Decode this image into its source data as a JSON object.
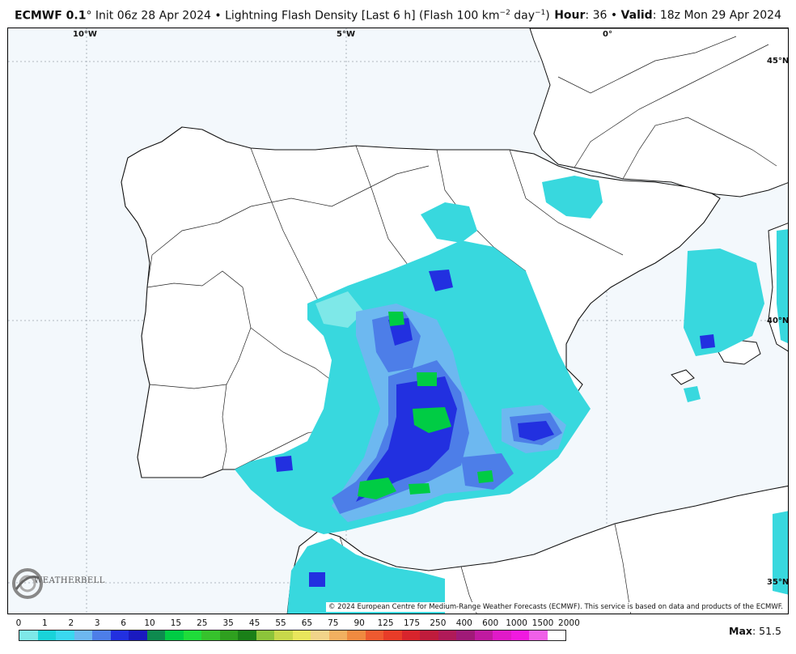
{
  "header": {
    "model": "ECMWF 0.1",
    "init_text": "° Init 06z 28 Apr 2024 • Lightning Flash Density [Last 6 h] (Flash 100 km",
    "unit_exp1": "−2",
    "unit_mid": " day",
    "unit_exp2": "−1",
    "unit_end": ")",
    "hour_label": "Hour",
    "hour_value": ": 36 • ",
    "valid_label": "Valid",
    "valid_value": ": 18z Mon 29 Apr 2024"
  },
  "map": {
    "lon_labels": [
      "10°W",
      "5°W",
      "0°"
    ],
    "lat_labels": [
      "45°N",
      "40°N",
      "35°N"
    ],
    "copyright": "© 2024 European Centre for Medium-Range Weather Forecasts (ECMWF). This service is based on data and products of the ECMWF.",
    "logo_text": "WEATHERBELL",
    "colors": {
      "background": "#f3f8fc",
      "border": "#111111",
      "grid": "#999999"
    }
  },
  "colorbar": {
    "labels": [
      "0",
      "1",
      "2",
      "3",
      "6",
      "10",
      "15",
      "25",
      "35",
      "45",
      "55",
      "65",
      "75",
      "90",
      "125",
      "175",
      "250",
      "400",
      "600",
      "1000",
      "1500",
      "2000"
    ],
    "colors": [
      "#7ee8e8",
      "#19d3d9",
      "#3ad8f0",
      "#6db8f0",
      "#4d7ee8",
      "#2230e0",
      "#1a1ac0",
      "#0e8a4f",
      "#00cc44",
      "#1fdc3a",
      "#36c22c",
      "#2fa01f",
      "#1a8018",
      "#8cc43a",
      "#c8d84a",
      "#e9e65c",
      "#f1d48a",
      "#f2b060",
      "#f08a40",
      "#ee5a30",
      "#e83c28",
      "#d8242c",
      "#c01c3c",
      "#b01a58",
      "#a01a78",
      "#c01aa0",
      "#e01ac8",
      "#f01ae0",
      "#f060e8",
      "#ffffff"
    ]
  },
  "max": {
    "label": "Max",
    "value": ": 51.5"
  }
}
